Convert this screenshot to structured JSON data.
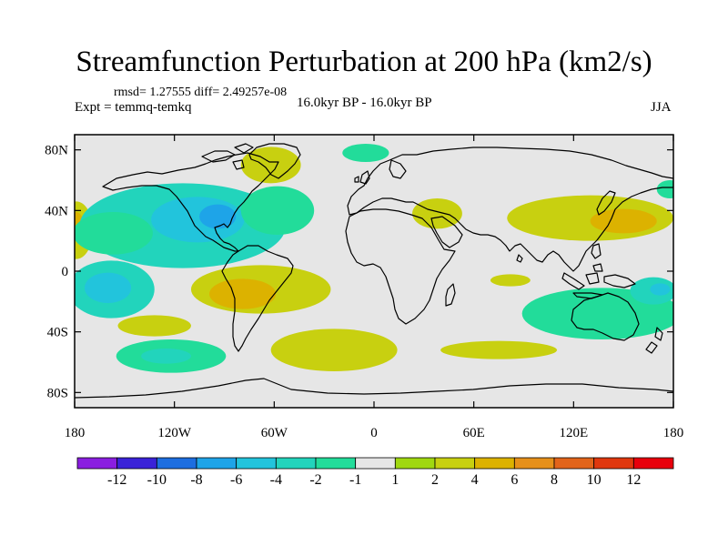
{
  "title": "Streamfunction Perturbation at 200 hPa (km2/s)",
  "stats_text": "rmsd= 1.27555 diff= 2.49257e-08",
  "expt_text": "Expt = temmq-temkq",
  "center_label": "16.0kyr BP - 16.0kyr BP",
  "season": "JJA",
  "chart_data": {
    "type": "heatmap",
    "projection": "cylindrical-equidistant",
    "title": "Streamfunction Perturbation at 200 hPa (km2/s)",
    "units": "km2/s",
    "xlim": [
      -180,
      180
    ],
    "ylim": [
      -90,
      90
    ],
    "y_ticks": [
      {
        "value": 80,
        "label": "80N"
      },
      {
        "value": 40,
        "label": "40N"
      },
      {
        "value": 0,
        "label": "0"
      },
      {
        "value": -40,
        "label": "40S"
      },
      {
        "value": -80,
        "label": "80S"
      }
    ],
    "x_ticks": [
      {
        "value": -180,
        "label": "180"
      },
      {
        "value": -120,
        "label": "120W"
      },
      {
        "value": -60,
        "label": "60W"
      },
      {
        "value": 0,
        "label": "0"
      },
      {
        "value": 60,
        "label": "60E"
      },
      {
        "value": 120,
        "label": "120E"
      },
      {
        "value": 180,
        "label": "180"
      }
    ],
    "background_color": "#e6e6e6",
    "colorbar": {
      "colors": [
        "#8a1ee0",
        "#3a22d8",
        "#1d6ee0",
        "#1ea4e8",
        "#22c4dc",
        "#22d4bc",
        "#22dc9a",
        "#e6e6e6",
        "#a0d810",
        "#c8d010",
        "#dcb200",
        "#e6901a",
        "#e2641a",
        "#e0380e",
        "#e8000c"
      ],
      "labels": [
        "-12",
        "-10",
        "-8",
        "-6",
        "-4",
        "-2",
        "-1",
        "1",
        "2",
        "4",
        "6",
        "8",
        "10",
        "12"
      ]
    },
    "anomalies": [
      {
        "lon": -179,
        "lat": 27,
        "rlon": 10,
        "rlat": 19,
        "value": 2
      },
      {
        "lon": -179,
        "lat": 32,
        "rlon": 4,
        "rlat": 7,
        "value": 4
      },
      {
        "lon": -115,
        "lat": 30,
        "rlon": 62,
        "rlat": 28,
        "value": -2
      },
      {
        "lon": -106,
        "lat": 34,
        "rlon": 28,
        "rlat": 15,
        "value": -4
      },
      {
        "lon": -94,
        "lat": 36,
        "rlon": 11,
        "rlat": 8,
        "value": -6
      },
      {
        "lon": -157,
        "lat": 25,
        "rlon": 24,
        "rlat": 14,
        "value": -1
      },
      {
        "lon": -58,
        "lat": 40,
        "rlon": 22,
        "rlat": 16,
        "value": -1
      },
      {
        "lon": -158,
        "lat": -12,
        "rlon": 26,
        "rlat": 19,
        "value": -2
      },
      {
        "lon": -160,
        "lat": -11,
        "rlon": 14,
        "rlat": 10,
        "value": -4
      },
      {
        "lon": -68,
        "lat": -12,
        "rlon": 42,
        "rlat": 16,
        "value": 2
      },
      {
        "lon": -79,
        "lat": -15,
        "rlon": 20,
        "rlat": 10,
        "value": 4
      },
      {
        "lon": -132,
        "lat": -36,
        "rlon": 22,
        "rlat": 7,
        "value": 2
      },
      {
        "lon": -122,
        "lat": -56,
        "rlon": 33,
        "rlat": 11,
        "value": -1
      },
      {
        "lon": -125,
        "lat": -56,
        "rlon": 15,
        "rlat": 5,
        "value": -2
      },
      {
        "lon": -62,
        "lat": 70,
        "rlon": 18,
        "rlat": 12,
        "value": 2
      },
      {
        "lon": -5,
        "lat": 78,
        "rlon": 14,
        "rlat": 6,
        "value": -1
      },
      {
        "lon": 38,
        "lat": 38,
        "rlon": 15,
        "rlat": 10,
        "value": 2
      },
      {
        "lon": 130,
        "lat": 35,
        "rlon": 50,
        "rlat": 15,
        "value": 2
      },
      {
        "lon": 150,
        "lat": 33,
        "rlon": 20,
        "rlat": 8,
        "value": 4
      },
      {
        "lon": 178,
        "lat": 54,
        "rlon": 8,
        "rlat": 6,
        "value": -1
      },
      {
        "lon": 82,
        "lat": -6,
        "rlon": 12,
        "rlat": 4,
        "value": 2
      },
      {
        "lon": 137,
        "lat": -28,
        "rlon": 48,
        "rlat": 17,
        "value": -1
      },
      {
        "lon": 168,
        "lat": -13,
        "rlon": 14,
        "rlat": 9,
        "value": -2
      },
      {
        "lon": 172,
        "lat": -12,
        "rlon": 6,
        "rlat": 4,
        "value": -4
      },
      {
        "lon": -24,
        "lat": -52,
        "rlon": 38,
        "rlat": 14,
        "value": 2
      },
      {
        "lon": 75,
        "lat": -52,
        "rlon": 35,
        "rlat": 6,
        "value": 2
      }
    ]
  }
}
